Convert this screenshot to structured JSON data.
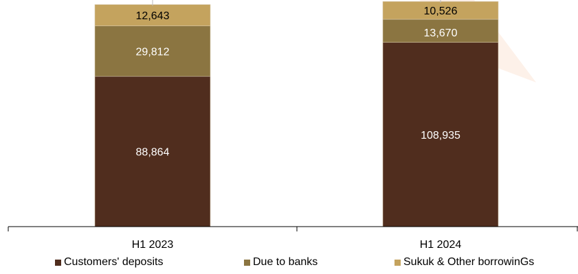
{
  "chart_data": {
    "type": "bar",
    "stacked": true,
    "categories": [
      "H1 2023",
      "H1 2024"
    ],
    "series": [
      {
        "name": "Customers' deposits",
        "values": [
          88864,
          108935
        ],
        "labels": [
          "88,864",
          "108,935"
        ],
        "color": "#502d1e"
      },
      {
        "name": "Due to banks",
        "values": [
          29812,
          13670
        ],
        "labels": [
          "29,812",
          "13,670"
        ],
        "color": "#8b7541"
      },
      {
        "name": "Sukuk & Other borrowinGs",
        "values": [
          12643,
          10526
        ],
        "labels": [
          "12,643",
          "10,526"
        ],
        "color": "#c4a35e"
      }
    ],
    "totals": [
      "131,319",
      "133,130"
    ],
    "ylim": [
      0,
      134000
    ],
    "grid": false,
    "legend": "bottom",
    "label_colors": [
      "#ffffff",
      "#ffffff",
      "#000000"
    ],
    "title": "",
    "xlabel": "",
    "ylabel": ""
  }
}
